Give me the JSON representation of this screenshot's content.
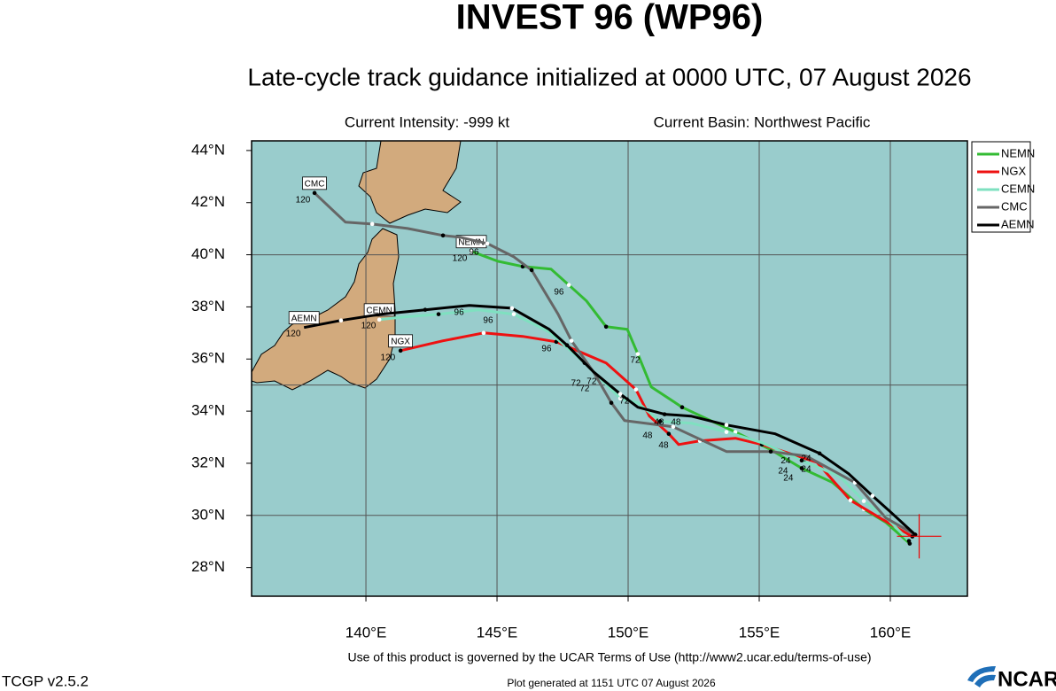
{
  "chart_data": {
    "type": "track-map",
    "title": "INVEST 96 (WP96)",
    "subtitle": "Late-cycle track guidance initialized at 0000 UTC, 07 August 2026",
    "intensity": "Current Intensity: -999 kt",
    "basin": "Current Basin: Northwest Pacific",
    "xlim": [
      135.64,
      162.94
    ],
    "ylim": [
      26.9,
      44.37
    ],
    "xticks": [
      {
        "value": 140,
        "label": "140°E"
      },
      {
        "value": 145,
        "label": "145°E"
      },
      {
        "value": 150,
        "label": "150°E"
      },
      {
        "value": 155,
        "label": "155°E"
      },
      {
        "value": 160,
        "label": "160°E"
      }
    ],
    "yticks": [
      {
        "value": 28,
        "label": "28°N"
      },
      {
        "value": 30,
        "label": "30°N"
      },
      {
        "value": 32,
        "label": "32°N"
      },
      {
        "value": 34,
        "label": "34°N"
      },
      {
        "value": 36,
        "label": "36°N"
      },
      {
        "value": 38,
        "label": "38°N"
      },
      {
        "value": 40,
        "label": "40°N"
      },
      {
        "value": 42,
        "label": "42°N"
      },
      {
        "value": 44,
        "label": "44°N"
      }
    ],
    "grid_lat": [
      30,
      35,
      40
    ],
    "legend": "upper right",
    "current_position": {
      "lon": 161.1,
      "lat": 29.2
    },
    "series": [
      {
        "name": "NEMN",
        "color": "#33bb33",
        "x": [
          160.74,
          159.83,
          158.99,
          157.8,
          156.62,
          155.44,
          154.09,
          153.07,
          152.06,
          150.88,
          150.37,
          149.97,
          149.16,
          148.41,
          147.74,
          147.06,
          145.98,
          145.03,
          144.02
        ],
        "values": [
          28.92,
          29.73,
          30.24,
          31.26,
          31.81,
          32.52,
          33.2,
          33.67,
          34.15,
          34.93,
          36.19,
          37.14,
          37.24,
          38.23,
          38.84,
          39.45,
          39.55,
          39.75,
          40.13
        ]
      },
      {
        "name": "NGX",
        "color": "#ee1111",
        "x": [
          160.84,
          159.66,
          158.48,
          157.2,
          155.1,
          154.09,
          152.74,
          151.93,
          151.55,
          150.81,
          150.3,
          149.16,
          147.26,
          145.98,
          144.49,
          142.94,
          141.32
        ],
        "values": [
          29.19,
          29.87,
          30.58,
          32.04,
          32.72,
          32.96,
          32.86,
          32.72,
          33.13,
          33.81,
          34.83,
          35.85,
          36.66,
          36.87,
          37.0,
          36.7,
          36.32
        ]
      },
      {
        "name": "CEMN",
        "color": "#7fe0c0",
        "x": [
          160.71,
          159.83,
          158.99,
          158.07,
          156.62,
          155.1,
          153.75,
          152.4,
          151.22,
          150.37,
          149.7,
          149.02,
          148.34,
          146.99,
          145.64,
          144.29,
          142.77,
          141.42,
          140.51
        ],
        "values": [
          29.02,
          29.94,
          30.55,
          31.5,
          32.11,
          32.79,
          33.2,
          33.54,
          33.61,
          34.32,
          34.49,
          35.17,
          35.85,
          37.04,
          37.72,
          37.89,
          37.72,
          37.61,
          37.51
        ]
      },
      {
        "name": "CMC",
        "color": "#666666",
        "x": [
          160.95,
          159.83,
          158.65,
          156.79,
          155.44,
          153.75,
          151.72,
          149.86,
          149.36,
          148.68,
          147.84,
          147.33,
          146.32,
          145.64,
          144.63,
          143.61,
          142.94,
          141.59,
          140.24,
          139.22,
          138.04
        ],
        "values": [
          29.26,
          29.9,
          31.26,
          32.28,
          32.45,
          32.45,
          33.4,
          33.64,
          34.32,
          35.51,
          36.7,
          37.72,
          39.41,
          39.92,
          40.43,
          40.67,
          40.74,
          41.01,
          41.18,
          41.25,
          42.37
        ]
      },
      {
        "name": "AEMN",
        "color": "#000000",
        "x": [
          160.95,
          160.0,
          159.32,
          158.41,
          157.3,
          155.61,
          153.75,
          152.4,
          151.39,
          150.37,
          149.7,
          148.68,
          147.67,
          146.99,
          145.57,
          143.95,
          142.26,
          140.57,
          139.05,
          137.64
        ],
        "values": [
          29.26,
          30.14,
          30.75,
          31.6,
          32.38,
          33.13,
          33.47,
          33.81,
          33.88,
          34.15,
          34.66,
          35.51,
          36.53,
          37.14,
          37.95,
          38.06,
          37.89,
          37.72,
          37.48,
          37.21
        ]
      }
    ],
    "hour_labels": [
      {
        "text": "96",
        "lon": 144.12,
        "lat": 40.09
      },
      {
        "text": "120",
        "lon": 143.58,
        "lat": 39.86
      },
      {
        "text": "96",
        "lon": 147.36,
        "lat": 38.57
      },
      {
        "text": "72",
        "lon": 150.27,
        "lat": 35.95
      },
      {
        "text": "96",
        "lon": 143.55,
        "lat": 37.78
      },
      {
        "text": "96",
        "lon": 144.66,
        "lat": 37.48
      },
      {
        "text": "120",
        "lon": 140.1,
        "lat": 37.27
      },
      {
        "text": "96",
        "lon": 146.89,
        "lat": 36.39
      },
      {
        "text": "72",
        "lon": 148.01,
        "lat": 35.07
      },
      {
        "text": "72",
        "lon": 148.61,
        "lat": 35.13
      },
      {
        "text": "72",
        "lon": 148.34,
        "lat": 34.86
      },
      {
        "text": "72",
        "lon": 149.86,
        "lat": 34.39
      },
      {
        "text": "48",
        "lon": 151.18,
        "lat": 33.57
      },
      {
        "text": "48",
        "lon": 151.82,
        "lat": 33.57
      },
      {
        "text": "48",
        "lon": 150.74,
        "lat": 33.06
      },
      {
        "text": "48",
        "lon": 151.35,
        "lat": 32.69
      },
      {
        "text": "24",
        "lon": 156.01,
        "lat": 32.08
      },
      {
        "text": "24",
        "lon": 156.79,
        "lat": 32.18
      },
      {
        "text": "24",
        "lon": 155.91,
        "lat": 31.7
      },
      {
        "text": "24",
        "lon": 156.79,
        "lat": 31.77
      },
      {
        "text": "24",
        "lon": 156.11,
        "lat": 31.43
      },
      {
        "text": "120",
        "lon": 137.6,
        "lat": 42.1
      },
      {
        "text": "120",
        "lon": 137.23,
        "lat": 36.97
      },
      {
        "text": "120",
        "lon": 140.84,
        "lat": 36.05
      }
    ],
    "terms": "Use of this product is governed by the UCAR Terms of Use (http://www2.ucar.edu/terms-of-use)",
    "version": "TCGP v2.5.2",
    "generated": "Plot generated at 1151 UTC   07 August 2026",
    "logo": "NCAR"
  }
}
